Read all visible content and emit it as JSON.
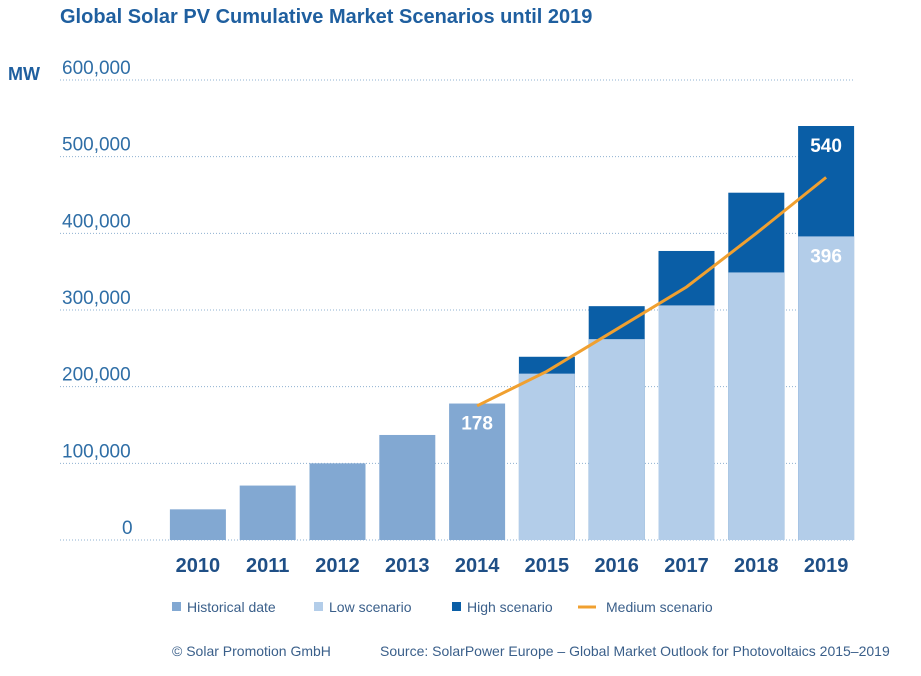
{
  "chart_data": {
    "type": "bar",
    "title": "Global Solar PV Cumulative Market Scenarios until 2019",
    "ylabel": "MW",
    "ylim": [
      0,
      600000
    ],
    "yticks": [
      "0",
      "100,000",
      "200,000",
      "300,000",
      "400,000",
      "500,000",
      "600,000"
    ],
    "grid": true,
    "categories": [
      "2010",
      "2011",
      "2012",
      "2013",
      "2014",
      "2015",
      "2016",
      "2017",
      "2018",
      "2019"
    ],
    "series": [
      {
        "name": "Historical date",
        "kind": "bar",
        "values": [
          40000,
          71000,
          100000,
          137000,
          178000,
          null,
          null,
          null,
          null,
          null
        ]
      },
      {
        "name": "Low scenario",
        "kind": "bar",
        "values": [
          null,
          null,
          null,
          null,
          null,
          217000,
          262000,
          306000,
          349000,
          396000
        ]
      },
      {
        "name": "High scenario",
        "kind": "bar-stacked-total",
        "values": [
          null,
          null,
          null,
          null,
          null,
          239000,
          305000,
          377000,
          453000,
          540000
        ]
      },
      {
        "name": "Medium scenario",
        "kind": "line",
        "values": [
          null,
          null,
          null,
          null,
          175000,
          220000,
          275000,
          330000,
          400000,
          473000
        ]
      }
    ],
    "data_labels": [
      {
        "category": "2014",
        "text": "178"
      },
      {
        "category": "2019",
        "text": "540"
      },
      {
        "category": "2019",
        "text": "396"
      }
    ],
    "legend_position": "bottom",
    "colors": {
      "historical": "#82a8d2",
      "low": "#b3cde9",
      "high": "#0a5ea6",
      "medium": "#f0a030",
      "axis_text": "#2f6ea6",
      "year_text": "#1f4f86"
    }
  },
  "footer": {
    "copyright": "© Solar Promotion GmbH",
    "source": "Source: SolarPower Europe – Global Market Outlook for Photovoltaics 2015–2019"
  }
}
